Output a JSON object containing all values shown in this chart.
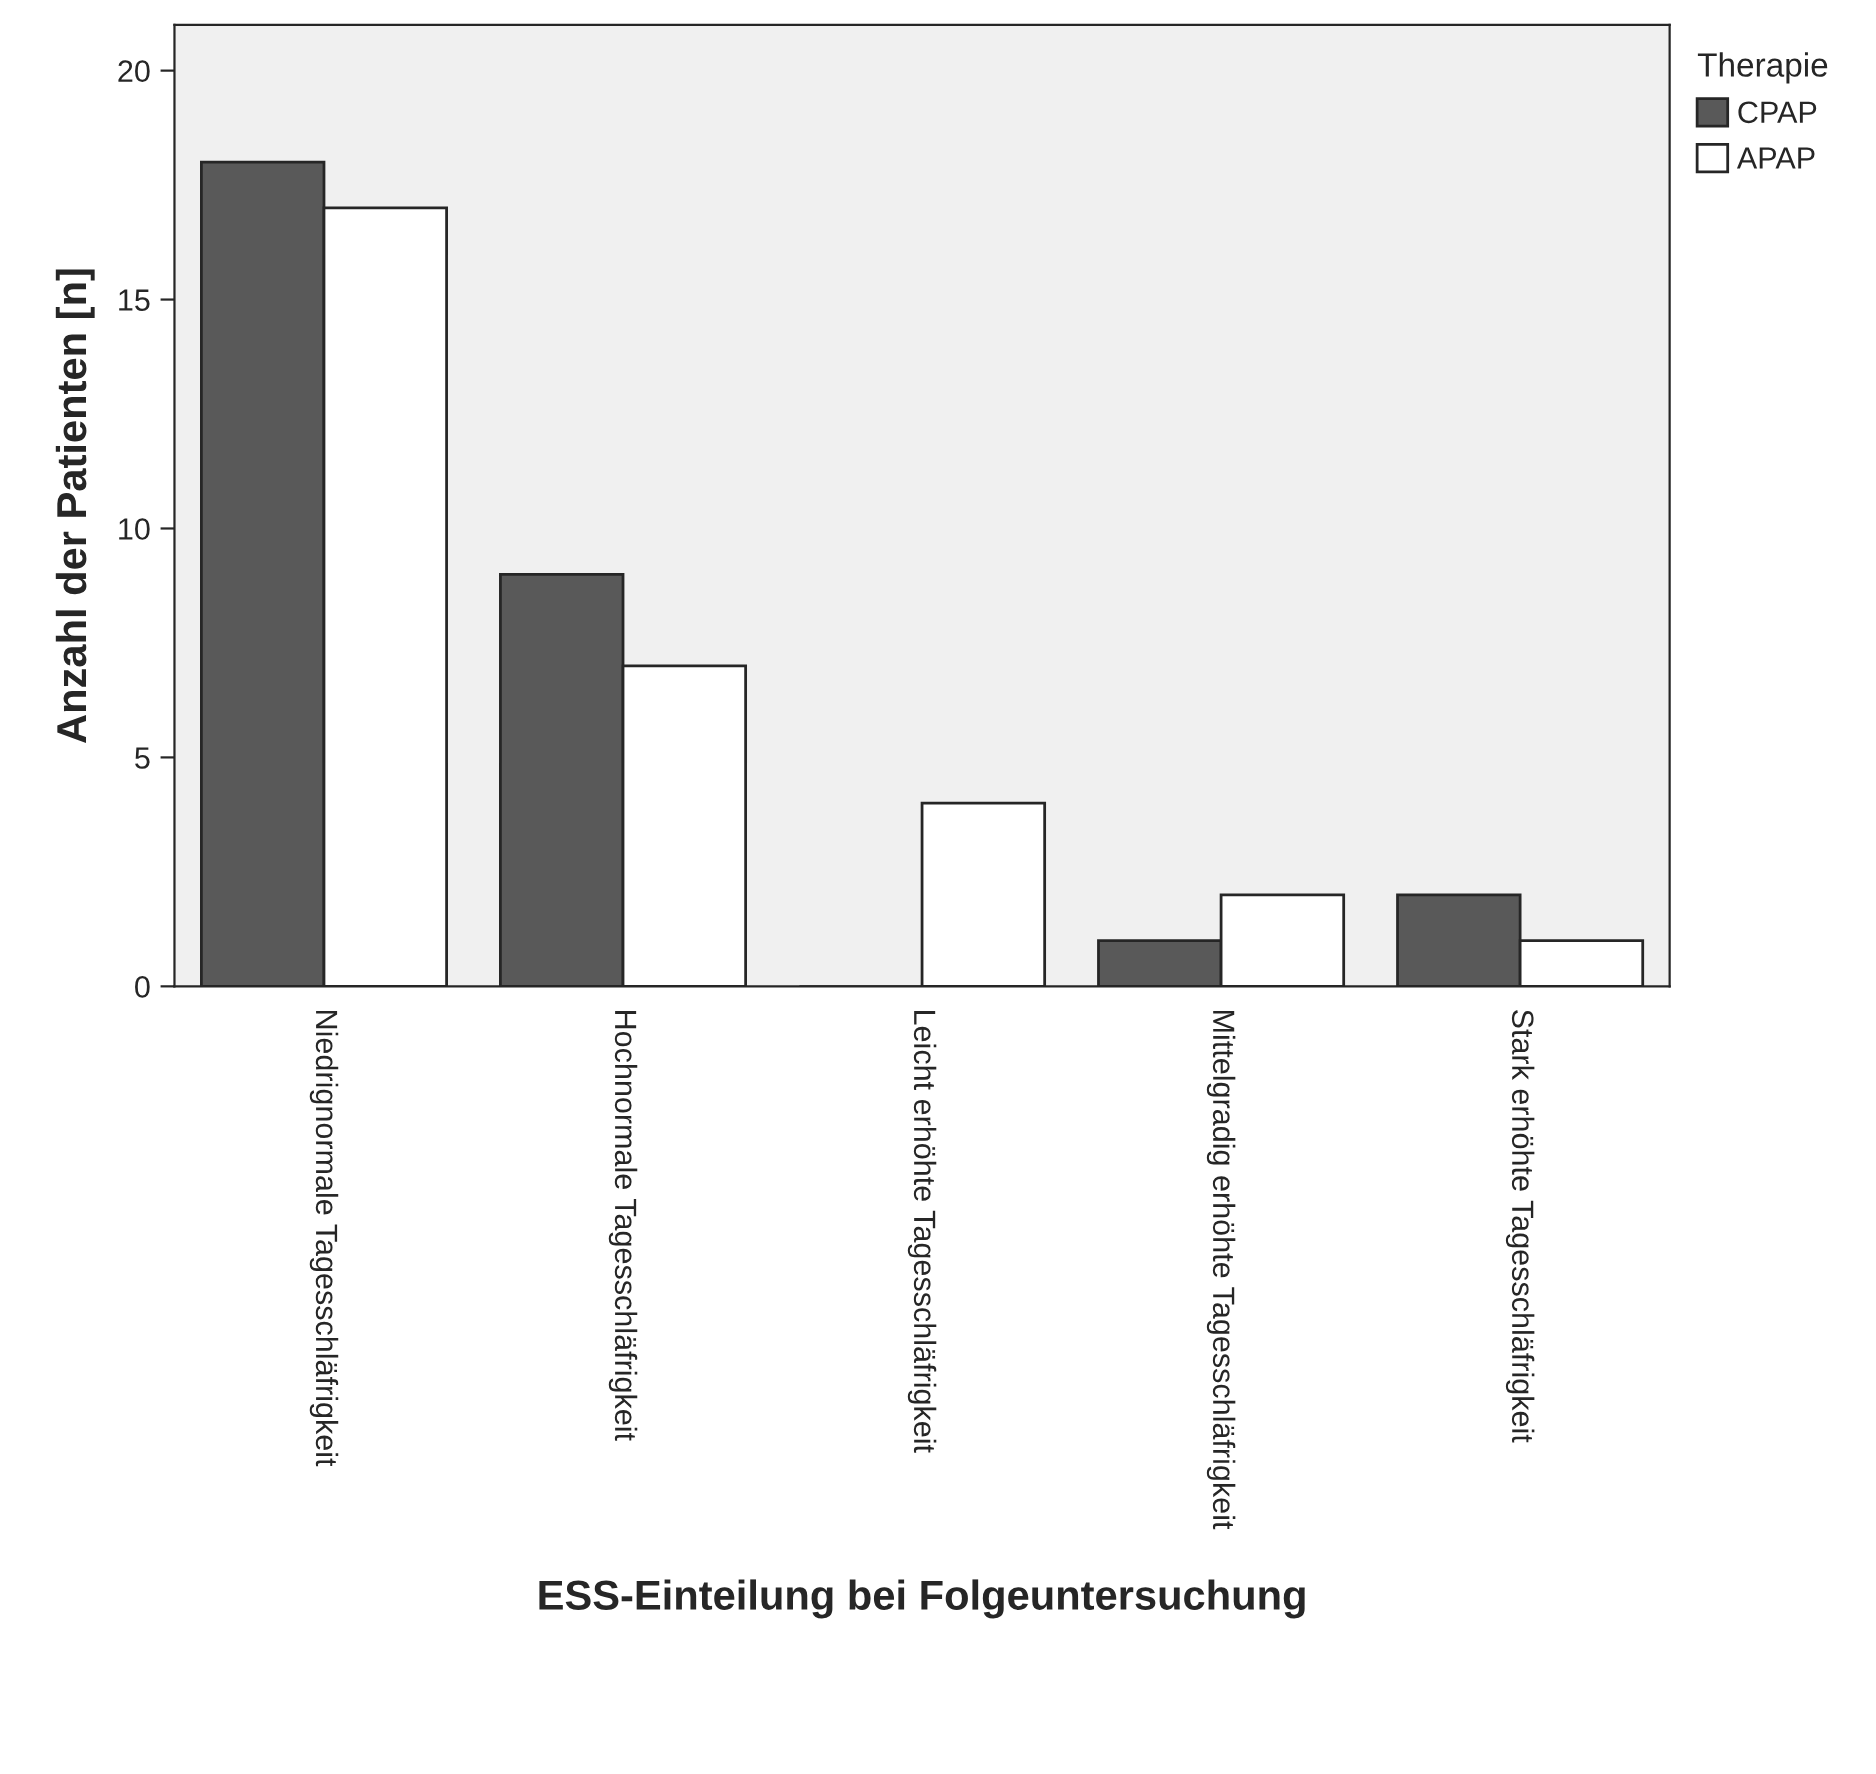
{
  "chart_data": {
    "type": "bar",
    "xlabel": "ESS-Einteilung bei Folgeuntersuchung",
    "ylabel": "Anzahl der Patienten [n]",
    "legend_title": "Therapie",
    "categories": [
      "Niedrignormale Tagesschläfrigkeit",
      "Hochnormale Tagesschläfrigkeit",
      "Leicht erhöhte Tagesschläfrigkeit",
      "Mittelgradig erhöhte Tagesschläfrigkeit",
      "Stark erhöhte Tagesschläfrigkeit"
    ],
    "series": [
      {
        "name": "CPAP",
        "color": "#595959",
        "values": [
          18,
          9,
          0,
          1,
          2
        ]
      },
      {
        "name": "APAP",
        "color": "#ffffff",
        "values": [
          17,
          7,
          4,
          2,
          1
        ]
      }
    ],
    "ylim": [
      0,
      21
    ],
    "yticks": [
      0,
      5,
      10,
      15,
      20
    ],
    "grid": false,
    "legend": "top right"
  }
}
